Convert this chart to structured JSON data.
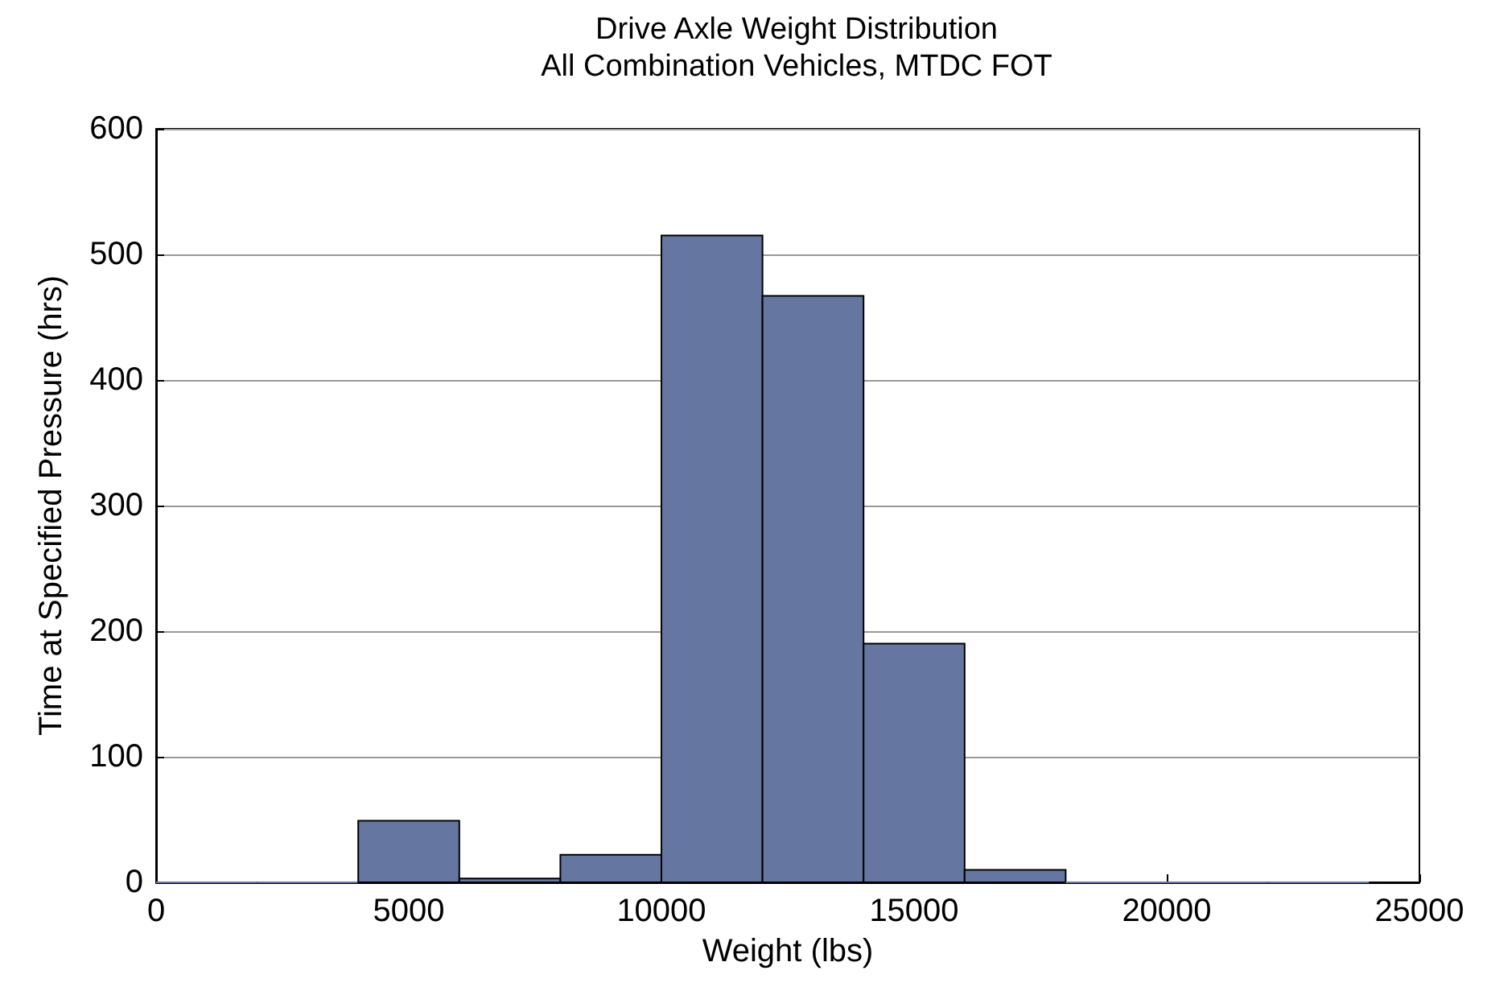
{
  "chart_data": {
    "type": "histogram",
    "title": "Drive Axle Weight Distribution",
    "subtitle": "All Combination Vehicles, MTDC FOT",
    "xlabel": "Weight (lbs)",
    "ylabel": "Time at Specified Pressure (hrs)",
    "bins": [
      0,
      2000,
      4000,
      6000,
      8000,
      10000,
      12000,
      14000,
      16000,
      18000,
      20000,
      22000,
      24000
    ],
    "values": [
      0,
      0,
      49,
      3,
      22,
      515,
      467,
      190,
      10,
      0,
      0,
      0
    ],
    "color": "#6577a0",
    "xlim": [
      0,
      25000
    ],
    "xticks": [
      0,
      5000,
      10000,
      15000,
      20000,
      25000
    ],
    "ylim": [
      0,
      600
    ],
    "yticks": [
      0,
      100,
      200,
      300,
      400,
      500,
      600
    ],
    "grid": "y"
  }
}
